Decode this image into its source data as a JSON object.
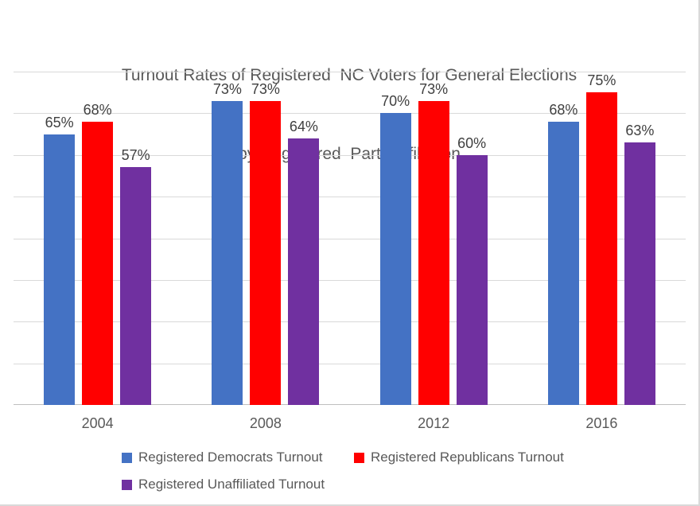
{
  "title": {
    "line1": "Turnout Rates of Registered  NC Voters for General Elections",
    "line2": "by Registered  Party Affiliation"
  },
  "chart_data": {
    "type": "bar",
    "title": "Turnout Rates of Registered NC Voters for General Elections by Registered Party Affiliation",
    "categories": [
      "2004",
      "2008",
      "2012",
      "2016"
    ],
    "series": [
      {
        "name": "Registered Democrats Turnout",
        "color": "#4472C4",
        "values": [
          65,
          73,
          70,
          68
        ]
      },
      {
        "name": "Registered Republicans Turnout",
        "color": "#FF0000",
        "values": [
          68,
          73,
          73,
          75
        ]
      },
      {
        "name": "Registered Unaffiliated Turnout",
        "color": "#7030A0",
        "values": [
          57,
          64,
          60,
          63
        ]
      }
    ],
    "value_suffix": "%",
    "data_labels": true,
    "xlabel": "",
    "ylabel": "",
    "ylim": [
      0,
      80
    ],
    "gridline_interval": 10,
    "grid": true,
    "y_axis_labels_visible": false,
    "legend_position": "bottom"
  },
  "colors": {
    "title": "#595959",
    "data_label": "#404040",
    "axis_label": "#595959",
    "gridline": "#D9D9D9",
    "axis_line": "#BFBFBF",
    "border": "#D9D9D9",
    "background": "#FFFFFF"
  }
}
